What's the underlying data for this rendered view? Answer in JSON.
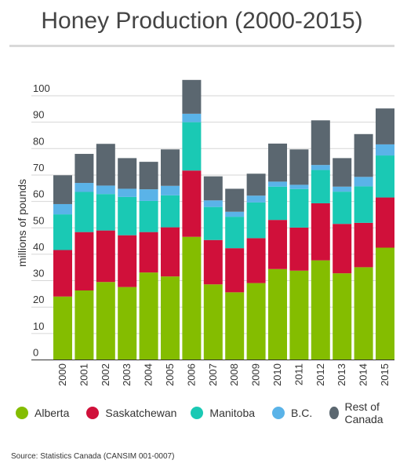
{
  "title": "Honey Production (2000-2015)",
  "source": "Source: Statistics Canada (CANSIM 001-0007)",
  "chart_data": {
    "type": "bar",
    "stacked": true,
    "title": "Honey Production (2000-2015)",
    "ylabel": "millions of pounds",
    "xlabel": "",
    "ylim": [
      0,
      110
    ],
    "yticks": [
      0,
      10,
      20,
      30,
      40,
      50,
      60,
      70,
      80,
      90,
      100
    ],
    "grid": true,
    "legend_position": "bottom",
    "categories": [
      "2000",
      "2001",
      "2002",
      "2003",
      "2004",
      "2005",
      "2006",
      "2007",
      "2008",
      "2009",
      "2010",
      "2011",
      "2012",
      "2013",
      "2014",
      "2015"
    ],
    "series": [
      {
        "name": "Alberta",
        "color": "#84bd00",
        "values": [
          24.0,
          26.3,
          29.5,
          27.6,
          33.1,
          31.6,
          46.6,
          28.6,
          25.6,
          29.1,
          34.4,
          33.8,
          37.7,
          32.8,
          35.1,
          42.5
        ]
      },
      {
        "name": "Saskatchewan",
        "color": "#d0103a",
        "values": [
          17.6,
          22.1,
          19.5,
          19.6,
          15.3,
          18.6,
          25.1,
          16.8,
          16.7,
          17.0,
          18.6,
          16.3,
          21.6,
          18.7,
          16.8,
          19.0
        ]
      },
      {
        "name": "Manitoba",
        "color": "#1ac9b4",
        "values": [
          13.5,
          15.2,
          13.8,
          14.5,
          11.8,
          12.1,
          18.3,
          12.5,
          11.9,
          13.5,
          12.6,
          14.6,
          12.6,
          12.2,
          13.8,
          15.9
        ]
      },
      {
        "name": "B.C.",
        "color": "#5ab3e8",
        "values": [
          3.9,
          3.4,
          3.2,
          3.1,
          4.4,
          3.6,
          3.2,
          2.5,
          1.9,
          2.6,
          1.9,
          1.6,
          1.9,
          1.9,
          3.6,
          4.2
        ]
      },
      {
        "name": "Rest of Canada",
        "color": "#5b6770",
        "values": [
          10.9,
          11.0,
          15.8,
          11.6,
          10.4,
          13.8,
          12.8,
          9.1,
          8.7,
          8.3,
          14.4,
          13.4,
          16.9,
          10.8,
          16.2,
          13.6
        ]
      }
    ]
  }
}
